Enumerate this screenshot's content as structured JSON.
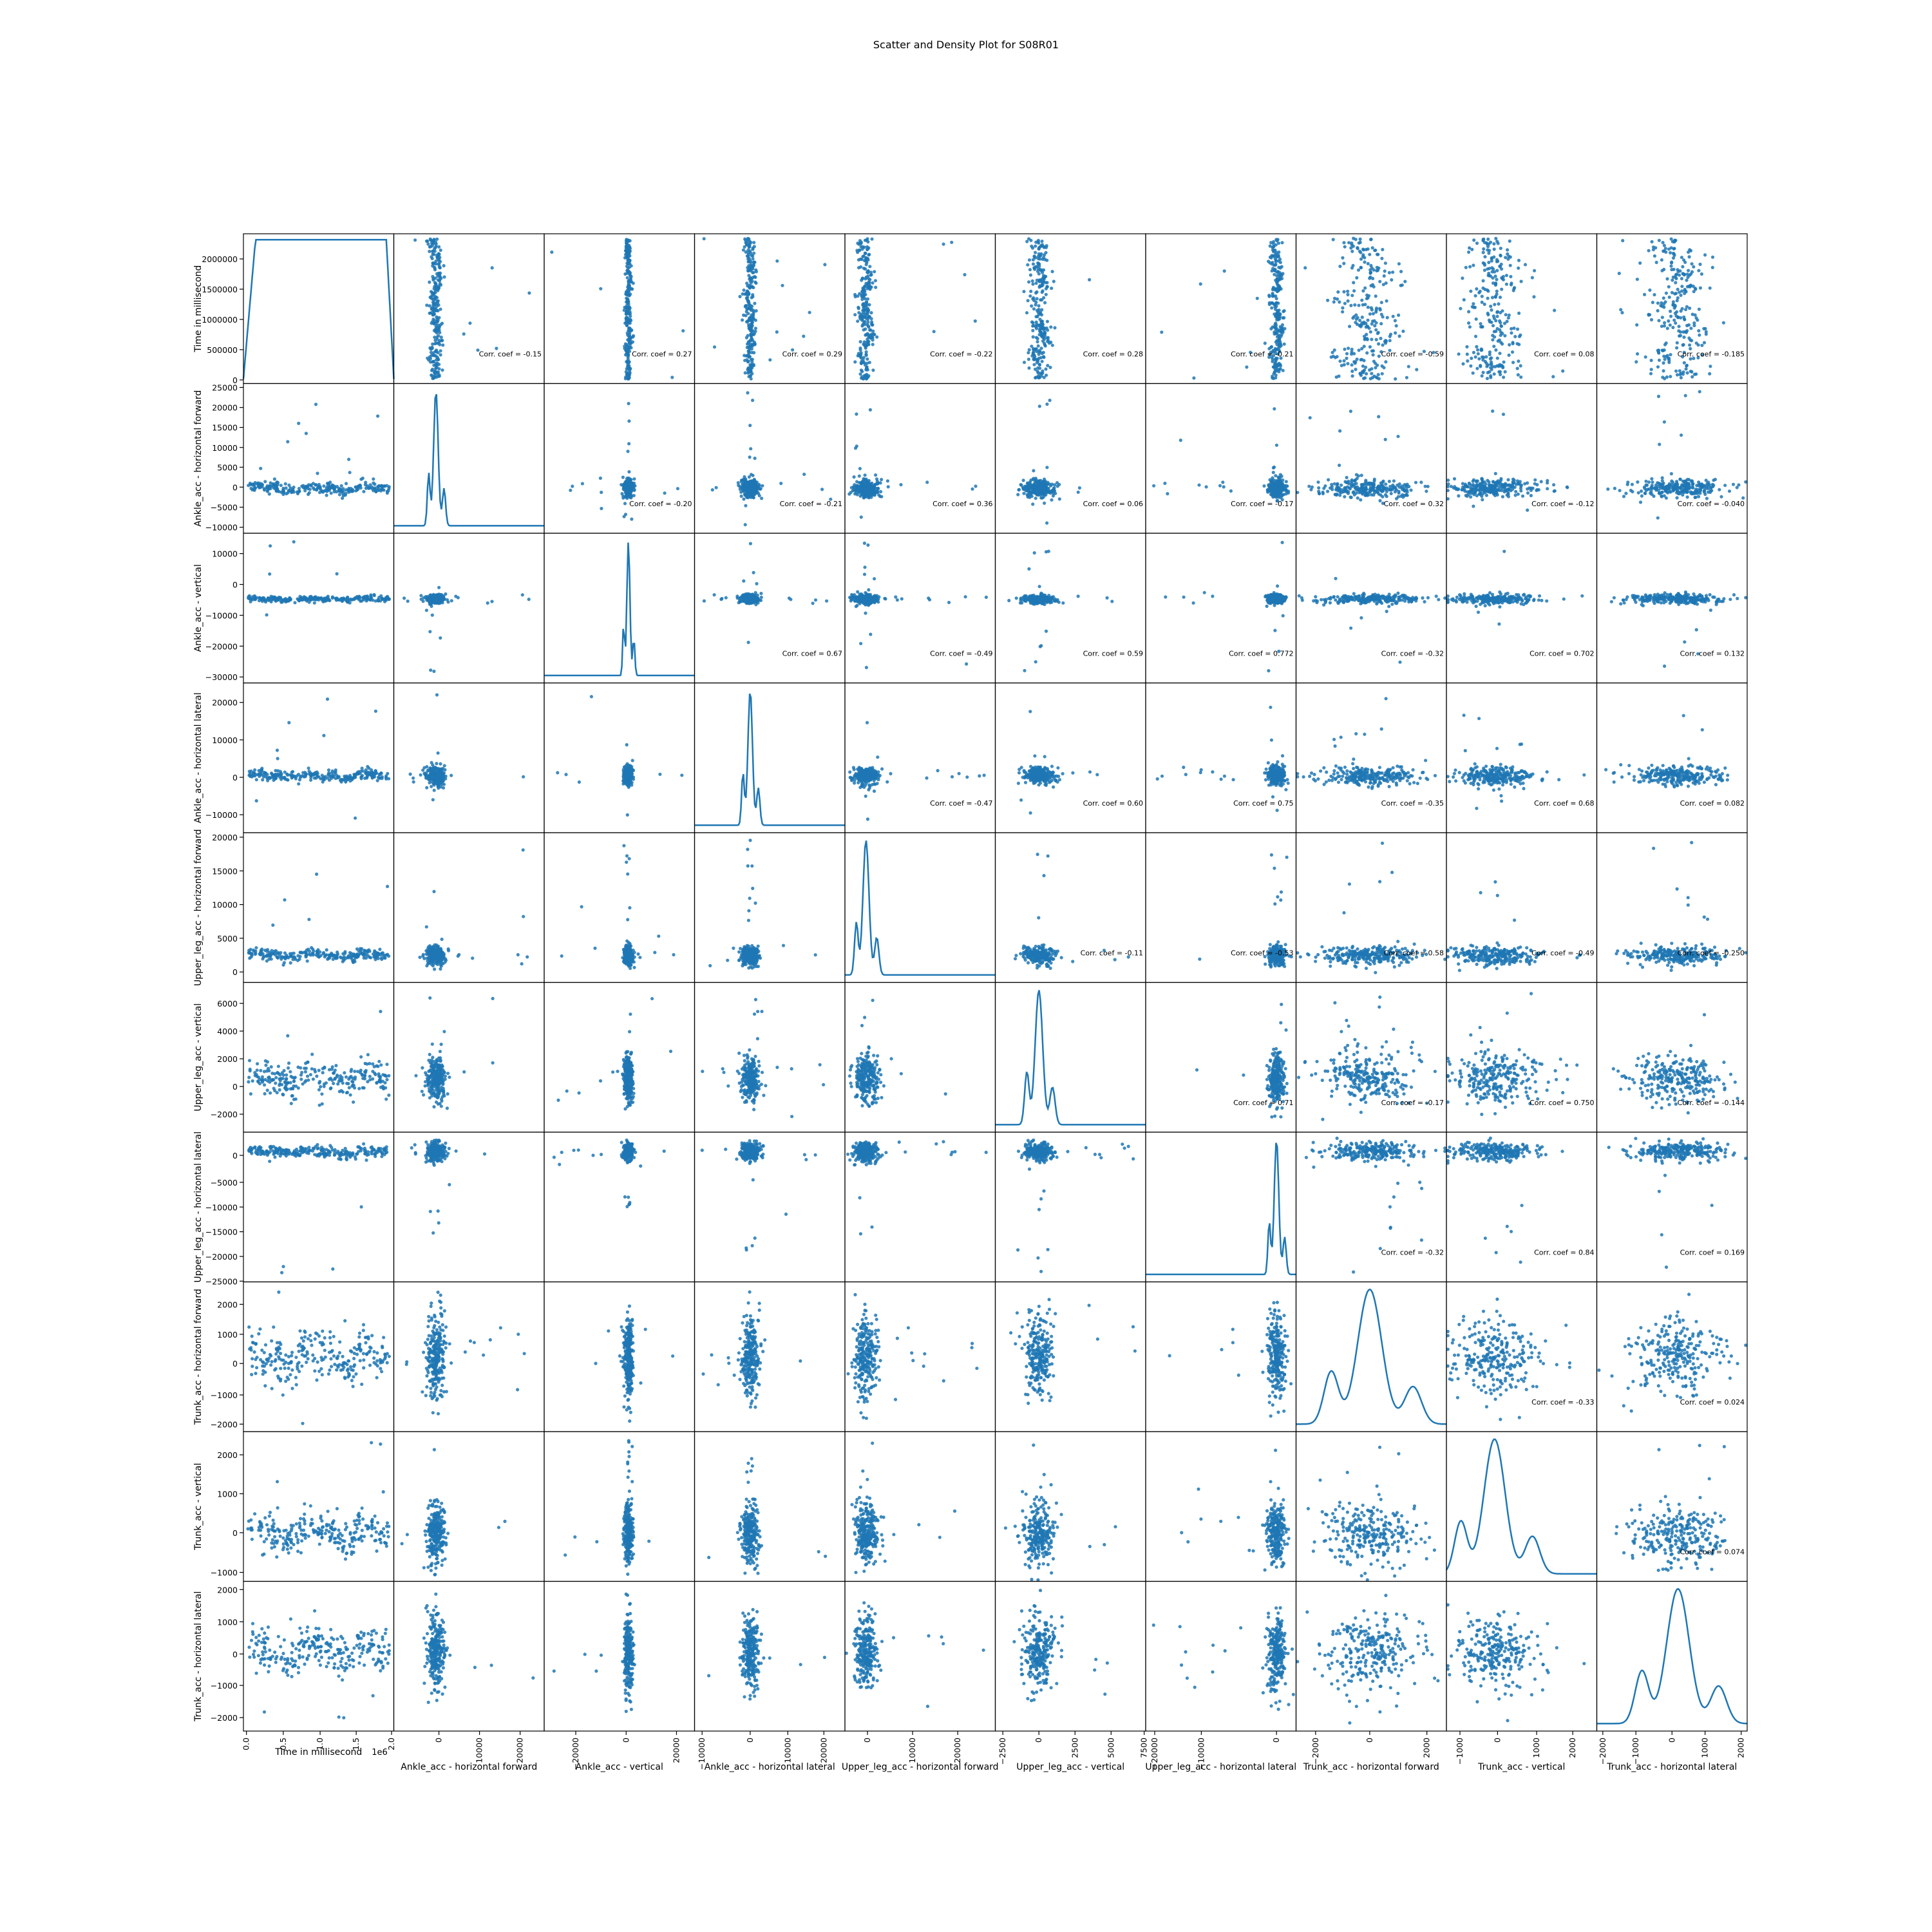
{
  "chart_data": {
    "type": "scatter",
    "title": "Scatter and Density Plot for S08R01",
    "variables": [
      "Time in millisecond",
      "Ankle_acc - horizontal forward",
      "Ankle_acc - vertical",
      "Ankle_acc - horizontal lateral",
      "Upper_leg_acc - horizontal forward",
      "Upper_leg_acc - vertical",
      "Upper_leg_acc - horizontal lateral",
      "Trunk_acc - horizontal forward",
      "Trunk_acc - vertical",
      "Trunk_acc - horizontal lateral"
    ],
    "x_offset_label": "1e6",
    "y_ticks": [
      [
        0,
        500000,
        1000000,
        1500000,
        2000000
      ],
      [
        -10000,
        -5000,
        0,
        5000,
        10000,
        15000,
        20000,
        25000
      ],
      [
        -30000,
        -20000,
        -10000,
        0,
        10000,
        20000
      ],
      [
        -10000,
        0,
        10000,
        20000
      ],
      [
        0,
        5000,
        10000,
        15000,
        20000
      ],
      [
        -2000,
        0,
        2000,
        4000,
        6000
      ],
      [
        -25000,
        -20000,
        -15000,
        -10000,
        -5000,
        0
      ],
      [
        -2000,
        -1000,
        0,
        1000,
        2000
      ],
      [
        -1000,
        0,
        1000,
        2000
      ],
      [
        -2000,
        -1000,
        0,
        1000,
        2000
      ]
    ],
    "x_ticks": [
      [
        "0.0",
        "0.5",
        "1.0",
        "1.5",
        "2.0"
      ],
      [
        "0",
        "10000",
        "20000"
      ],
      [
        "−20000",
        "0",
        "20000"
      ],
      [
        "−10000",
        "0",
        "10000",
        "20000"
      ],
      [
        "0",
        "10000",
        "20000"
      ],
      [
        "−2500",
        "0",
        "2500",
        "5000",
        "7500"
      ],
      [
        "−20000",
        "−10000",
        "0"
      ],
      [
        "−2000",
        "0",
        "2000"
      ],
      [
        "−1000",
        "0",
        "1000",
        "2000"
      ],
      [
        "−2000",
        "−1000",
        "0",
        "1000",
        "2000"
      ]
    ],
    "correlations": [
      {
        "row": 1,
        "col": 2,
        "label": "Corr. coef = -0.15"
      },
      {
        "row": 1,
        "col": 3,
        "label": "Corr. coef = 0.27"
      },
      {
        "row": 1,
        "col": 4,
        "label": "Corr. coef = 0.29"
      },
      {
        "row": 1,
        "col": 5,
        "label": "Corr. coef = -0.22"
      },
      {
        "row": 1,
        "col": 6,
        "label": "Corr. coef = 0.28"
      },
      {
        "row": 1,
        "col": 7,
        "label": "Corr. coef = -0.21"
      },
      {
        "row": 1,
        "col": 8,
        "label": "Corr. coef = -0.59"
      },
      {
        "row": 1,
        "col": 9,
        "label": "Corr. coef = 0.08"
      },
      {
        "row": 1,
        "col": 10,
        "label": "Corr. coef = -0.185"
      },
      {
        "row": 2,
        "col": 3,
        "label": "Corr. coef = -0.20"
      },
      {
        "row": 2,
        "col": 4,
        "label": "Corr. coef = -0.21"
      },
      {
        "row": 2,
        "col": 5,
        "label": "Corr. coef = 0.36"
      },
      {
        "row": 2,
        "col": 6,
        "label": "Corr. coef = 0.06"
      },
      {
        "row": 2,
        "col": 7,
        "label": "Corr. coef = -0.17"
      },
      {
        "row": 2,
        "col": 8,
        "label": "Corr. coef = 0.32"
      },
      {
        "row": 2,
        "col": 9,
        "label": "Corr. coef = -0.12"
      },
      {
        "row": 2,
        "col": 10,
        "label": "Corr. coef = -0.040"
      },
      {
        "row": 3,
        "col": 4,
        "label": "Corr. coef = 0.67"
      },
      {
        "row": 3,
        "col": 5,
        "label": "Corr. coef = -0.49"
      },
      {
        "row": 3,
        "col": 6,
        "label": "Corr. coef = 0.59"
      },
      {
        "row": 3,
        "col": 7,
        "label": "Corr. coef = 0.772"
      },
      {
        "row": 3,
        "col": 8,
        "label": "Corr. coef = -0.32"
      },
      {
        "row": 3,
        "col": 9,
        "label": "Corr. coef = 0.702"
      },
      {
        "row": 3,
        "col": 10,
        "label": "Corr. coef = 0.132"
      },
      {
        "row": 4,
        "col": 5,
        "label": "Corr. coef = -0.47"
      },
      {
        "row": 4,
        "col": 6,
        "label": "Corr. coef = 0.60"
      },
      {
        "row": 4,
        "col": 7,
        "label": "Corr. coef = 0.75"
      },
      {
        "row": 4,
        "col": 8,
        "label": "Corr. coef = -0.35"
      },
      {
        "row": 4,
        "col": 9,
        "label": "Corr. coef = 0.68"
      },
      {
        "row": 4,
        "col": 10,
        "label": "Corr. coef = 0.082"
      },
      {
        "row": 5,
        "col": 6,
        "label": "Corr. coef = -0.11"
      },
      {
        "row": 5,
        "col": 7,
        "label": "Corr. coef = -0.53"
      },
      {
        "row": 5,
        "col": 8,
        "label": "Corr. coef = 0.58"
      },
      {
        "row": 5,
        "col": 9,
        "label": "Corr. coef = -0.49"
      },
      {
        "row": 5,
        "col": 10,
        "label": "Corr. coef = -0.250"
      },
      {
        "row": 6,
        "col": 7,
        "label": "Corr. coef = 0.71"
      },
      {
        "row": 6,
        "col": 8,
        "label": "Corr. coef = -0.17"
      },
      {
        "row": 6,
        "col": 9,
        "label": "Corr. coef = 0.750"
      },
      {
        "row": 6,
        "col": 10,
        "label": "Corr. coef = -0.144"
      },
      {
        "row": 7,
        "col": 8,
        "label": "Corr. coef = -0.32"
      },
      {
        "row": 7,
        "col": 9,
        "label": "Corr. coef = 0.84"
      },
      {
        "row": 7,
        "col": 10,
        "label": "Corr. coef = 0.169"
      },
      {
        "row": 8,
        "col": 9,
        "label": "Corr. coef = -0.33"
      },
      {
        "row": 8,
        "col": 10,
        "label": "Corr. coef = 0.024"
      },
      {
        "row": 9,
        "col": 10,
        "label": "Corr. coef = 0.074"
      }
    ],
    "series_color": "#1f77b4",
    "diagonal": "density",
    "grid": false,
    "legend": "none"
  }
}
